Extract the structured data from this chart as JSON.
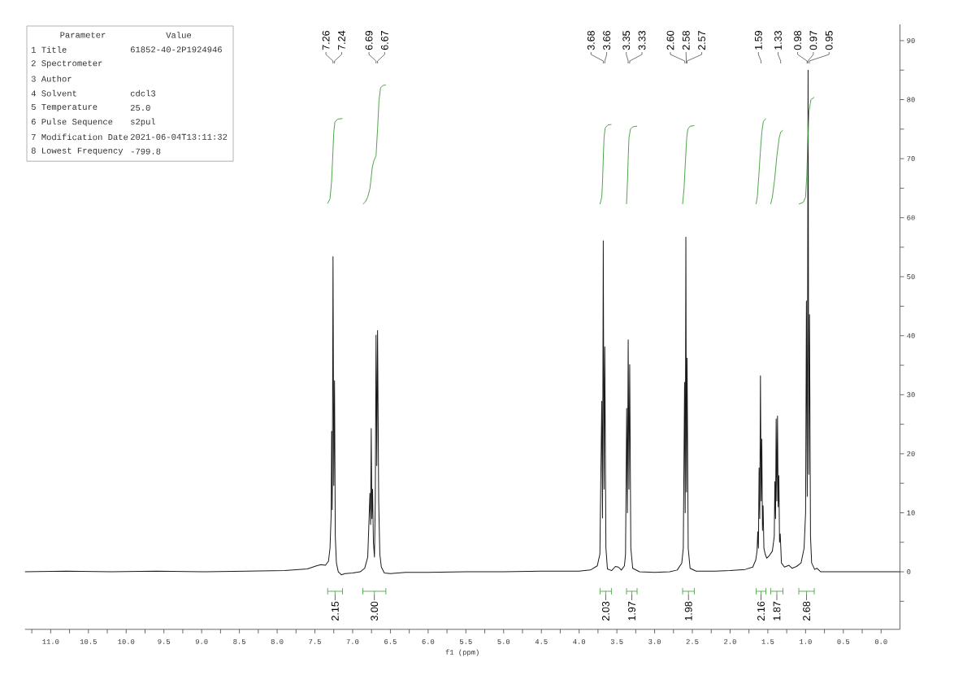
{
  "chart_data": [
    {
      "type": "other",
      "categories": [
        "Parameter",
        "Value"
      ],
      "cell_labels": [
        [
          "1 Title",
          "61852-40-2P1924946"
        ],
        [
          "2 Spectrometer",
          null
        ],
        [
          "3 Author",
          null
        ],
        [
          "4 Solvent",
          "cdcl3"
        ],
        [
          "5 Temperature",
          "25.0"
        ],
        [
          "6 Pulse Sequence",
          "s2pul"
        ],
        [
          "7 Modification Date",
          "2021-06-04T13:11:32"
        ],
        [
          "8 Lowest Frequency",
          "-799.8"
        ]
      ]
    },
    {
      "type": "line",
      "xlabel": "f1 (ppm)",
      "xlim": [
        11.34,
        -0.25
      ],
      "xticks": [
        {
          "value": 11.25,
          "label": null
        },
        {
          "value": 11.0,
          "label": "11.0"
        },
        {
          "value": 10.75,
          "label": null
        },
        {
          "value": 10.5,
          "label": "10.5"
        },
        {
          "value": 10.25,
          "label": null
        },
        {
          "value": 10.0,
          "label": "10.0"
        },
        {
          "value": 9.75,
          "label": null
        },
        {
          "value": 9.5,
          "label": "9.5"
        },
        {
          "value": 9.25,
          "label": null
        },
        {
          "value": 9.0,
          "label": "9.0"
        },
        {
          "value": 8.75,
          "label": null
        },
        {
          "value": 8.5,
          "label": "8.5"
        },
        {
          "value": 8.25,
          "label": null
        },
        {
          "value": 8.0,
          "label": "8.0"
        },
        {
          "value": 7.75,
          "label": null
        },
        {
          "value": 7.5,
          "label": "7.5"
        },
        {
          "value": 7.25,
          "label": null
        },
        {
          "value": 7.0,
          "label": "7.0"
        },
        {
          "value": 6.75,
          "label": null
        },
        {
          "value": 6.5,
          "label": "6.5"
        },
        {
          "value": 6.25,
          "label": null
        },
        {
          "value": 6.0,
          "label": "6.0"
        },
        {
          "value": 5.75,
          "label": null
        },
        {
          "value": 5.5,
          "label": "5.5"
        },
        {
          "value": 5.25,
          "label": null
        },
        {
          "value": 5.0,
          "label": "5.0"
        },
        {
          "value": 4.75,
          "label": null
        },
        {
          "value": 4.5,
          "label": "4.5"
        },
        {
          "value": 4.25,
          "label": null
        },
        {
          "value": 4.0,
          "label": "4.0"
        },
        {
          "value": 3.75,
          "label": null
        },
        {
          "value": 3.5,
          "label": "3.5"
        },
        {
          "value": 3.25,
          "label": null
        },
        {
          "value": 3.0,
          "label": "3.0"
        },
        {
          "value": 2.75,
          "label": null
        },
        {
          "value": 2.5,
          "label": "2.5"
        },
        {
          "value": 2.25,
          "label": null
        },
        {
          "value": 2.0,
          "label": "2.0"
        },
        {
          "value": 1.75,
          "label": null
        },
        {
          "value": 1.5,
          "label": "1.5"
        },
        {
          "value": 1.25,
          "label": null
        },
        {
          "value": 1.0,
          "label": "1.0"
        },
        {
          "value": 0.75,
          "label": null
        },
        {
          "value": 0.5,
          "label": "0.5"
        },
        {
          "value": 0.25,
          "label": null
        },
        {
          "value": 0.0,
          "label": "0.0"
        }
      ],
      "ylim": [
        -9.75,
        92.75
      ],
      "yticks": [
        {
          "value": -5,
          "label": null
        },
        0,
        {
          "value": 5,
          "label": null
        },
        10,
        {
          "value": 15,
          "label": null
        },
        20,
        {
          "value": 25,
          "label": null
        },
        30,
        {
          "value": 35,
          "label": null
        },
        40,
        {
          "value": 45,
          "label": null
        },
        50,
        {
          "value": 55,
          "label": null
        },
        60,
        {
          "value": 65,
          "label": null
        },
        70,
        {
          "value": 75,
          "label": null
        },
        80,
        {
          "value": 85,
          "label": null
        },
        90
      ],
      "series": [
        {
          "color": "#1a1a1a",
          "x": [
            11.34,
            10.8,
            10.2,
            9.6,
            9.0,
            8.4,
            7.9,
            7.6,
            7.48,
            7.42,
            7.36,
            7.32,
            7.3,
            7.285,
            7.278,
            7.27,
            7.26,
            7.25,
            7.24,
            7.23,
            7.215,
            7.19,
            7.15,
            7.1,
            7.0,
            6.9,
            6.84,
            6.8,
            6.771,
            6.762,
            6.754,
            6.745,
            6.736,
            6.725,
            6.711,
            6.7,
            6.69,
            6.68,
            6.67,
            6.655,
            6.64,
            6.62,
            6.58,
            6.5,
            6.3,
            6.0,
            5.5,
            5.0,
            4.5,
            4.0,
            3.85,
            3.76,
            3.725,
            3.7,
            3.69,
            3.68,
            3.67,
            3.66,
            3.645,
            3.625,
            3.57,
            3.52,
            3.48,
            3.44,
            3.4,
            3.385,
            3.37,
            3.36,
            3.35,
            3.34,
            3.33,
            3.315,
            3.29,
            3.2,
            3.0,
            2.8,
            2.7,
            2.64,
            2.62,
            2.603,
            2.595,
            2.586,
            2.578,
            2.57,
            2.555,
            2.53,
            2.45,
            2.2,
            2.0,
            1.8,
            1.7,
            1.66,
            1.643,
            1.634,
            1.625,
            1.616,
            1.607,
            1.598,
            1.589,
            1.58,
            1.571,
            1.563,
            1.552,
            1.535,
            1.515,
            1.49,
            1.44,
            1.415,
            1.407,
            1.398,
            1.39,
            1.381,
            1.372,
            1.363,
            1.354,
            1.345,
            1.336,
            1.32,
            1.28,
            1.22,
            1.18,
            1.12,
            1.06,
            1.02,
            1.0,
            0.989,
            0.978,
            0.967,
            0.958,
            0.948,
            0.935,
            0.92,
            0.88,
            0.85,
            0.8,
            0.5,
            0.0,
            -0.25
          ],
          "values": [
            0.0,
            0.1,
            0.0,
            0.1,
            0.0,
            0.1,
            0.2,
            0.5,
            1.0,
            1.2,
            1.1,
            1.8,
            4.0,
            9.5,
            23.8,
            10.5,
            53.4,
            14.6,
            32.4,
            6.0,
            1.5,
            0.0,
            -0.5,
            -0.3,
            -0.2,
            0.0,
            0.6,
            2.5,
            13.3,
            8.0,
            24.3,
            9.0,
            14.0,
            5.0,
            2.5,
            12.0,
            40.1,
            18.0,
            40.9,
            12.0,
            3.0,
            0.8,
            -0.2,
            -0.3,
            -0.1,
            -0.1,
            0.0,
            0.0,
            0.1,
            0.1,
            0.3,
            1.0,
            3.0,
            28.9,
            9.1,
            56.1,
            14.0,
            38.1,
            4.0,
            0.5,
            0.2,
            0.9,
            0.8,
            0.3,
            1.0,
            3.0,
            27.7,
            10.0,
            39.3,
            14.0,
            35.1,
            4.0,
            0.6,
            0.0,
            -0.1,
            0.0,
            0.3,
            1.5,
            4.0,
            32.1,
            10.0,
            56.7,
            13.5,
            36.2,
            4.0,
            0.6,
            0.1,
            0.1,
            0.2,
            0.4,
            0.8,
            2.0,
            3.5,
            6.8,
            4.0,
            17.6,
            9.0,
            33.2,
            12.0,
            22.5,
            7.0,
            11.2,
            4.0,
            3.0,
            2.3,
            2.6,
            3.5,
            6.0,
            15.3,
            9.0,
            25.9,
            12.0,
            26.4,
            11.0,
            16.3,
            5.0,
            6.4,
            1.5,
            0.8,
            1.1,
            0.6,
            0.9,
            1.5,
            4.0,
            10.0,
            45.9,
            12.8,
            85.0,
            16.5,
            43.6,
            6.0,
            1.5,
            0.4,
            0.6,
            0.0,
            0.0,
            0.0,
            0.0
          ]
        },
        {
          "color": "#3f9a3a",
          "x": [
            7.331,
            7.3,
            7.28,
            7.265,
            7.25,
            7.235,
            7.2,
            7.134
          ],
          "values": [
            62.4,
            63.2,
            66.0,
            70.0,
            74.5,
            76.2,
            76.7,
            76.8
          ]
        },
        {
          "color": "#3f9a3a",
          "x": [
            6.865,
            6.83,
            6.8,
            6.77,
            6.74,
            6.72,
            6.69,
            6.67,
            6.65,
            6.63,
            6.6,
            6.56
          ],
          "values": [
            62.3,
            62.7,
            63.5,
            65.0,
            68.5,
            69.6,
            70.5,
            75.0,
            80.0,
            82.0,
            82.4,
            82.5
          ]
        },
        {
          "color": "#3f9a3a",
          "x": [
            3.723,
            3.7,
            3.69,
            3.68,
            3.67,
            3.655,
            3.62,
            3.572
          ],
          "values": [
            62.3,
            63.5,
            66.0,
            70.0,
            73.5,
            75.2,
            75.7,
            75.8
          ]
        },
        {
          "color": "#3f9a3a",
          "x": [
            3.372,
            3.36,
            3.35,
            3.34,
            3.32,
            3.29,
            3.232
          ],
          "values": [
            62.3,
            66.0,
            70.0,
            73.5,
            75.0,
            75.4,
            75.5
          ]
        },
        {
          "color": "#3f9a3a",
          "x": [
            2.629,
            2.61,
            2.59,
            2.575,
            2.56,
            2.53,
            2.474
          ],
          "values": [
            62.3,
            65.0,
            70.0,
            73.5,
            75.0,
            75.5,
            75.6
          ]
        },
        {
          "color": "#3f9a3a",
          "x": [
            1.655,
            1.64,
            1.62,
            1.6,
            1.58,
            1.56,
            1.526
          ],
          "values": [
            62.3,
            63.5,
            67.0,
            71.0,
            74.5,
            76.3,
            76.8
          ]
        },
        {
          "color": "#3f9a3a",
          "x": [
            1.462,
            1.44,
            1.41,
            1.38,
            1.35,
            1.33,
            1.3
          ],
          "values": [
            62.3,
            63.5,
            66.5,
            70.5,
            73.5,
            74.5,
            74.8
          ]
        },
        {
          "color": "#3f9a3a",
          "x": [
            1.09,
            1.03,
            1.0,
            0.985,
            0.97,
            0.955,
            0.93,
            0.885
          ],
          "values": [
            62.3,
            62.6,
            63.5,
            67.0,
            73.0,
            78.0,
            80.0,
            80.4
          ]
        }
      ],
      "annotations": [
        {
          "text": "7.26",
          "x": 7.26
        },
        {
          "text": "7.24",
          "x": 7.24
        },
        {
          "text": "6.69",
          "x": 6.69
        },
        {
          "text": "6.67",
          "x": 6.67
        },
        {
          "text": "3.68",
          "x": 3.68
        },
        {
          "text": "3.66",
          "x": 3.66
        },
        {
          "text": "3.35",
          "x": 3.35
        },
        {
          "text": "3.33",
          "x": 3.33
        },
        {
          "text": "2.60",
          "x": 2.6
        },
        {
          "text": "2.58",
          "x": 2.58
        },
        {
          "text": "2.57",
          "x": 2.57
        },
        {
          "text": "1.59",
          "x": 1.59
        },
        {
          "text": "1.33",
          "x": 1.33
        },
        {
          "text": "0.98",
          "x": 0.98
        },
        {
          "text": "0.97",
          "x": 0.97
        },
        {
          "text": "0.95",
          "x": 0.95
        },
        "2.15",
        "3.00",
        "2.03",
        "1.97",
        "1.98",
        "2.16",
        "1.87",
        "2.68"
      ]
    }
  ]
}
